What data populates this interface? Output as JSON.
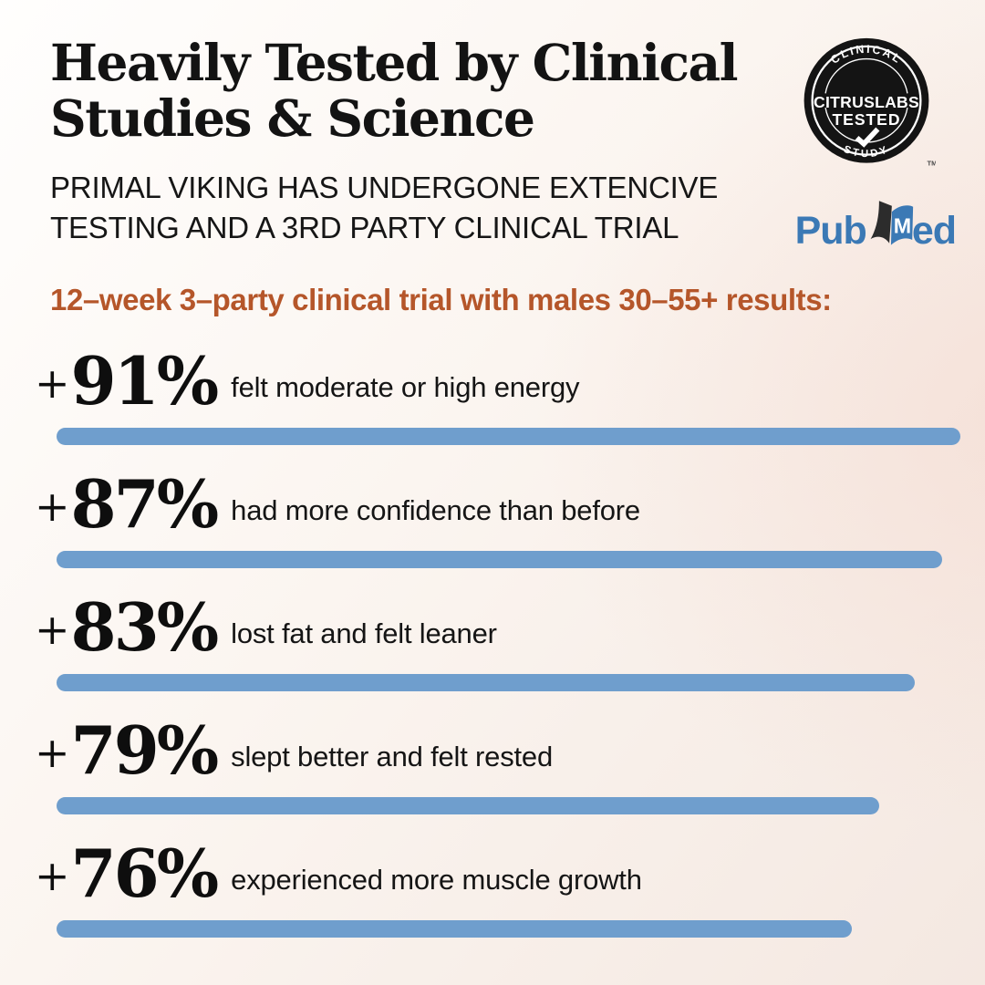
{
  "header": {
    "title_line1": "Heavily Tested by Clinical",
    "title_line2": "Studies & Science",
    "subtitle_line1": "PRIMAL VIKING HAS UNDERGONE EXTENCIVE",
    "subtitle_line2": "TESTING AND A 3RD PARTY CLINICAL TRIAL"
  },
  "badge": {
    "top_text": "CLINICAL",
    "center_line1": "CITRUSLABS",
    "center_line2": "TESTED",
    "bottom_text": "STUDY",
    "trademark": "TM"
  },
  "pubmed": {
    "prefix": "Pub",
    "book_letter": "M",
    "suffix": "ed"
  },
  "chart_data": {
    "type": "bar",
    "orientation": "horizontal",
    "title": "12–week 3–party clinical trial with males 30–55+ results:",
    "categories": [
      "felt moderate or high energy",
      "had more confidence than before",
      "lost fat and felt leaner",
      "slept better and felt rested",
      "experienced more muscle growth"
    ],
    "values": [
      91,
      87,
      83,
      79,
      76
    ],
    "value_labels": [
      "+91%",
      "+87%",
      "+83%",
      "+79%",
      "+76%"
    ],
    "bar_color": "#6f9ecd",
    "items": [
      {
        "plus": "+",
        "number": "91%",
        "label": "felt moderate or high energy",
        "bar_width_pct": 100
      },
      {
        "plus": "+",
        "number": "87%",
        "label": "had more confidence than before",
        "bar_width_pct": 98
      },
      {
        "plus": "+",
        "number": "83%",
        "label": "lost fat and felt leaner",
        "bar_width_pct": 95
      },
      {
        "plus": "+",
        "number": "79%",
        "label": "slept better and felt rested",
        "bar_width_pct": 91
      },
      {
        "plus": "+",
        "number": "76%",
        "label": "experienced more muscle growth",
        "bar_width_pct": 88
      }
    ]
  },
  "colors": {
    "accent_orange": "#b5562a",
    "bar_blue": "#6f9ecd",
    "pubmed_blue": "#3b79b5",
    "badge_black": "#141414",
    "text_black": "#141414"
  }
}
